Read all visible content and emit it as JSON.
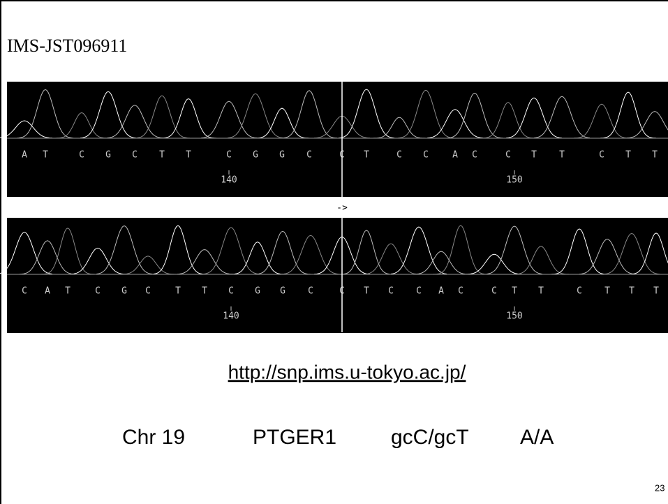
{
  "title": "IMS-JST096911",
  "traces": [
    {
      "bases": [
        "A",
        "T",
        "C",
        "G",
        "C",
        "T",
        "T",
        "C",
        "G",
        "G",
        "C",
        "C",
        "T",
        "C",
        "C",
        "A",
        "C",
        "C",
        "T",
        "T",
        "C",
        "T",
        "T"
      ],
      "position_labels": [
        140,
        150
      ]
    },
    {
      "bases": [
        "C",
        "A",
        "T",
        "C",
        "G",
        "C",
        "T",
        "T",
        "C",
        "G",
        "G",
        "C",
        "C",
        "T",
        "C",
        "C",
        "A",
        "C",
        "C",
        "T",
        "T",
        "C",
        "T",
        "T",
        "T"
      ],
      "position_labels": [
        140,
        150
      ]
    }
  ],
  "direction": "->",
  "url": "http://snp.ims.u-tokyo.ac.jp/",
  "info": [
    "Chr 19",
    "PTGER1",
    "gcC/gcT",
    "A/A"
  ],
  "page_number": "23"
}
